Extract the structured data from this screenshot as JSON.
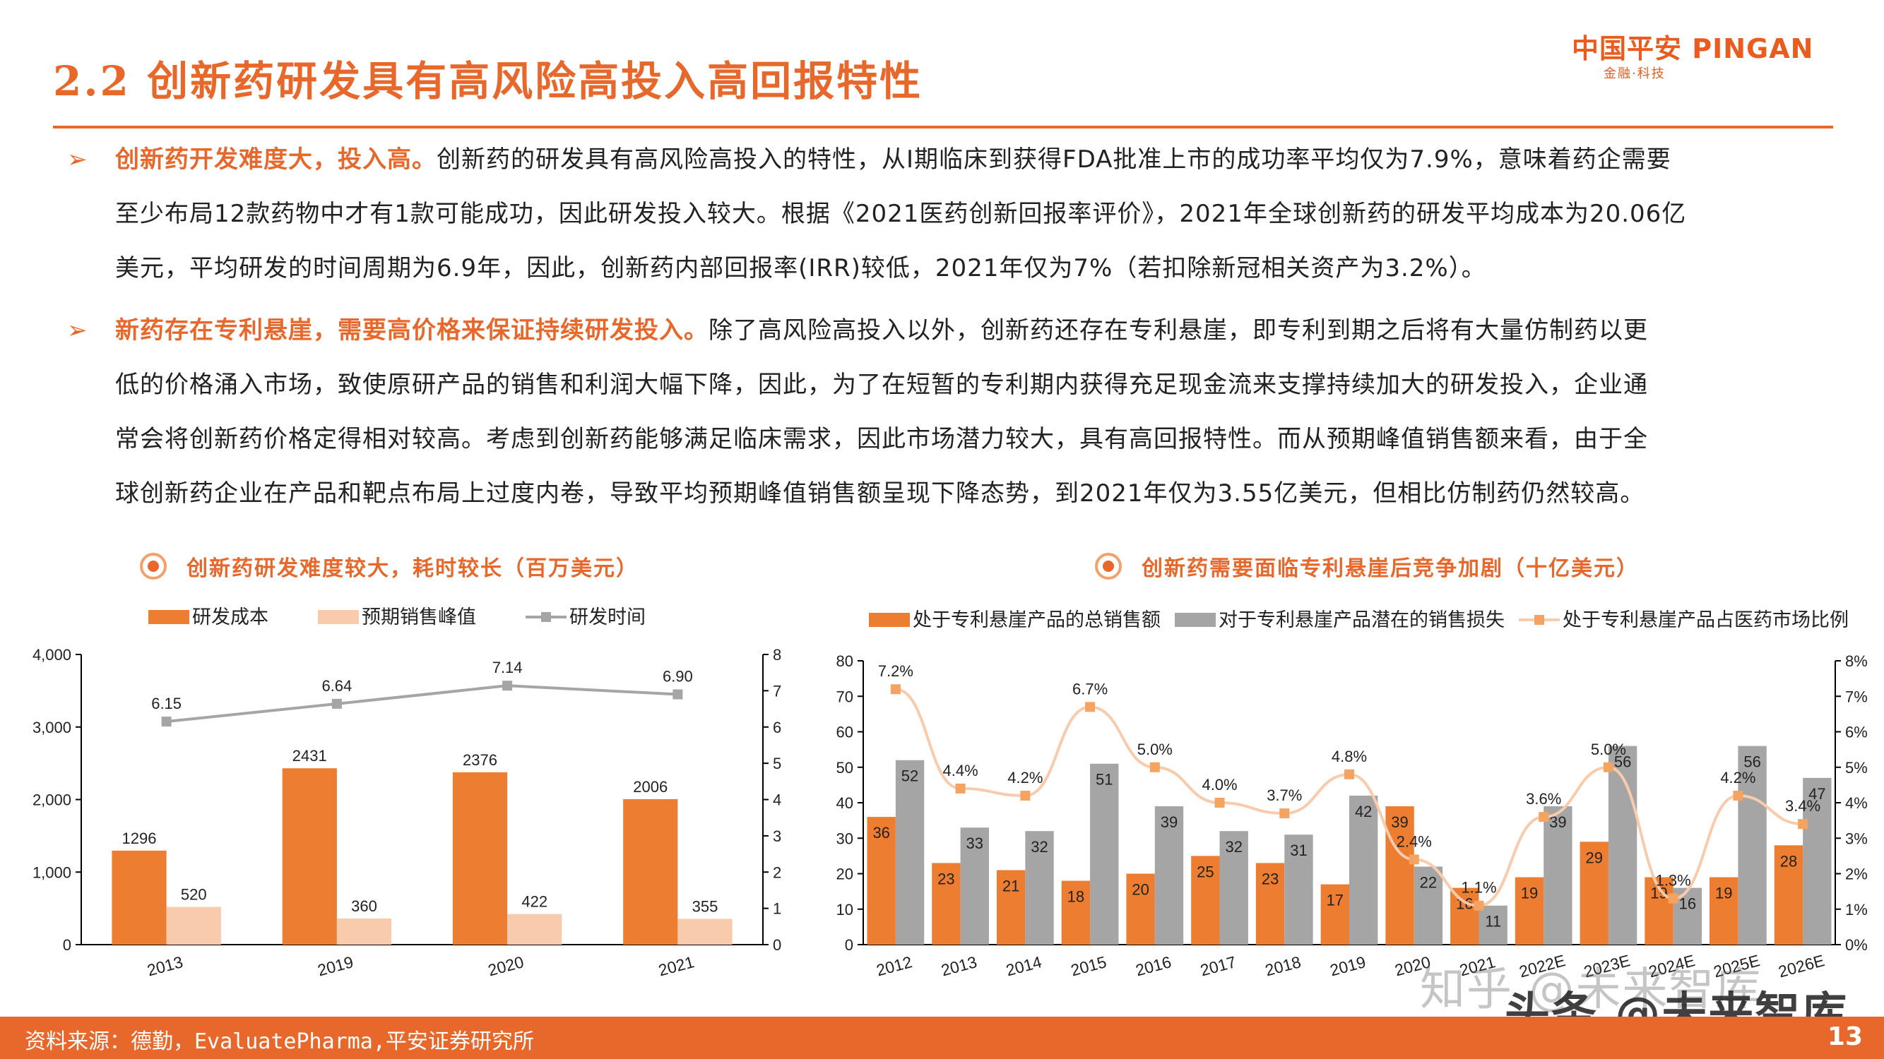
{
  "header": {
    "title": "2.2 创新药研发具有高风险高投入高回报特性",
    "logo_main": "中国平安 PINGAN",
    "logo_sub": "金融·科技"
  },
  "paragraphs": [
    {
      "arrow": "➢",
      "lead": "创新药开发难度大，投入高。",
      "line1": "创新药的研发具有高风险高投入的特性，从I期临床到获得FDA批准上市的成功率平均仅为7.9%，意味着药企需要",
      "line2": "至少布局12款药物中才有1款可能成功，因此研发投入较大。根据《2021医药创新回报率评价》，2021年全球创新药的研发平均成本为20.06亿",
      "line3": "美元，平均研发的时间周期为6.9年，因此，创新药内部回报率(IRR)较低，2021年仅为7%（若扣除新冠相关资产为3.2%）。"
    },
    {
      "arrow": "➢",
      "lead": "新药存在专利悬崖，需要高价格来保证持续研发投入。",
      "line1": "除了高风险高投入以外，创新药还存在专利悬崖，即专利到期之后将有大量仿制药以更",
      "line2": "低的价格涌入市场，致使原研产品的销售和利润大幅下降，因此，为了在短暂的专利期内获得充足现金流来支撑持续加大的研发投入，企业通",
      "line3": "常会将创新药价格定得相对较高。考虑到创新药能够满足临床需求，因此市场潜力较大，具有高回报特性。而从预期峰值销售额来看，由于全",
      "line4": "球创新药企业在产品和靶点布局上过度内卷，导致平均预期峰值销售额呈现下降态势，到2021年仅为3.55亿美元，但相比仿制药仍然较高。"
    }
  ],
  "chart_data": [
    {
      "type": "bar",
      "title": "创新药研发难度较大，耗时较长（百万美元）",
      "categories": [
        "2013",
        "2019",
        "2020",
        "2021"
      ],
      "series": [
        {
          "name": "研发成本",
          "kind": "bar",
          "axis": "left",
          "color": "#ed7d31",
          "values": [
            1296,
            2431,
            2376,
            2006
          ]
        },
        {
          "name": "预期销售峰值",
          "kind": "bar",
          "axis": "left",
          "color": "#f8cbad",
          "values": [
            520,
            360,
            422,
            355
          ]
        },
        {
          "name": "研发时间",
          "kind": "line",
          "axis": "right",
          "color": "#a5a5a5",
          "values": [
            6.15,
            6.64,
            7.14,
            6.9
          ]
        }
      ],
      "left_ticks": [
        "0",
        "1,000",
        "2,000",
        "3,000",
        "4,000"
      ],
      "ylim": [
        0,
        4000
      ],
      "right_ticks": [
        "0",
        "1",
        "2",
        "3",
        "4",
        "5",
        "6",
        "7",
        "8"
      ],
      "y2lim": [
        0,
        8
      ],
      "legend": "top"
    },
    {
      "type": "bar",
      "title": "创新药需要面临专利悬崖后竞争加剧（十亿美元）",
      "categories": [
        "2012",
        "2013",
        "2014",
        "2015",
        "2016",
        "2017",
        "2018",
        "2019",
        "2020",
        "2021",
        "2022E",
        "2023E",
        "2024E",
        "2025E",
        "2026E"
      ],
      "series": [
        {
          "name": "处于专利悬崖产品的总销售额",
          "kind": "bar",
          "axis": "left",
          "color": "#ed7d31",
          "values": [
            36,
            23,
            21,
            18,
            20,
            25,
            23,
            17,
            39,
            16,
            19,
            29,
            19,
            19,
            28
          ]
        },
        {
          "name": "对于专利悬崖产品潜在的销售损失",
          "kind": "bar",
          "axis": "left",
          "color": "#a5a5a5",
          "values": [
            52,
            33,
            32,
            51,
            39,
            32,
            31,
            42,
            22,
            11,
            39,
            56,
            16,
            56,
            47
          ]
        },
        {
          "name": "处于专利悬崖产品占医药市场比例",
          "kind": "line",
          "axis": "right",
          "color": "#f8cbad",
          "values": [
            7.2,
            4.4,
            4.2,
            6.7,
            5.0,
            4.0,
            3.7,
            4.8,
            2.4,
            1.1,
            3.6,
            5.0,
            1.3,
            4.2,
            3.4
          ],
          "labels": [
            "7.2%",
            "4.4%",
            "4.2%",
            "6.7%",
            "5.0%",
            "4.0%",
            "3.7%",
            "4.8%",
            "2.4%",
            "1.1%",
            "3.6%",
            "5.0%",
            "1.3%",
            "4.2%",
            "3.4%"
          ]
        }
      ],
      "left_ticks": [
        "0",
        "10",
        "20",
        "30",
        "40",
        "50",
        "60",
        "70",
        "80"
      ],
      "ylim": [
        0,
        80
      ],
      "right_ticks": [
        "0%",
        "1%",
        "2%",
        "3%",
        "4%",
        "5%",
        "6%",
        "7%",
        "8%"
      ],
      "y2lim": [
        0,
        8
      ],
      "legend": "top"
    }
  ],
  "footer": {
    "source": "资料来源：德勤，EvaluatePharma,平安证券研究所",
    "page": "13"
  },
  "watermarks": {
    "primary": "头条 @未来智库",
    "secondary": "知乎 @未来智库"
  }
}
